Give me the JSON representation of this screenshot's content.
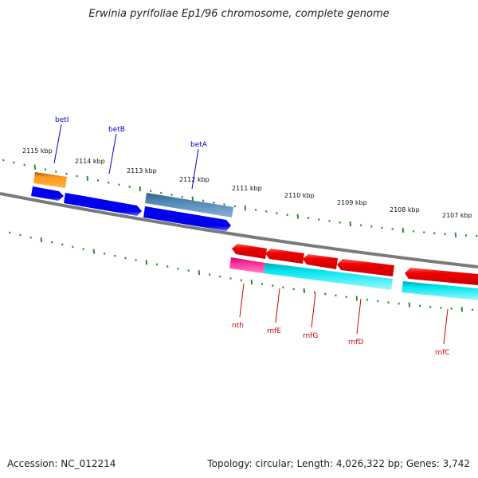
{
  "title": "Erwinia pyrifoliae Ep1/96 chromosome, complete genome",
  "footer": {
    "accession": "Accession: NC_012214",
    "summary": "Topology: circular; Length: 4,026,322 bp; Genes: 3,742"
  },
  "colors": {
    "backbone": "#808080",
    "tick": "#2e8b2e",
    "forward_label": "#0000cc",
    "reverse_label": "#cc0000"
  },
  "scale_labels": [
    "2115 kbp",
    "2114 kbp",
    "2113 kbp",
    "2112 kbp",
    "2111 kbp",
    "2110 kbp",
    "2109 kbp",
    "2108 kbp",
    "2107 kbp"
  ],
  "forward_genes": [
    {
      "name": "betI",
      "color": "#ff8c00"
    },
    {
      "name": "betB",
      "color": "#0000ee"
    },
    {
      "name": "betA",
      "color": "#4682b4"
    }
  ],
  "reverse_genes": [
    {
      "name": "nth",
      "color": "#ee0000"
    },
    {
      "name": "rnfE",
      "color": "#ee0000"
    },
    {
      "name": "rnfG",
      "color": "#ee0000"
    },
    {
      "name": "rnfD",
      "color": "#ee0000"
    },
    {
      "name": "rnfC",
      "color": "#ee0000"
    }
  ]
}
